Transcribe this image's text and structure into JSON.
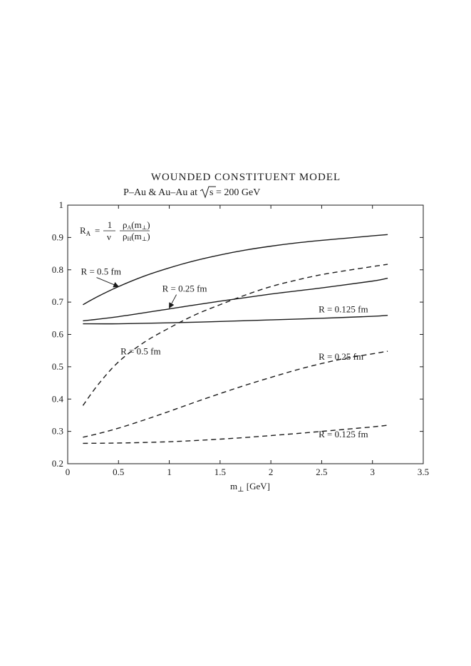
{
  "chart_data": {
    "type": "line",
    "title": "WOUNDED CONSTITUENT MODEL",
    "subtitle": {
      "prefix": "P–Au  &  Au–Au  at  ",
      "sqrt_label": "s",
      "suffix": " = 200 GeV"
    },
    "xlabel": {
      "main": "m",
      "sub": "⊥",
      "rest": " [GeV]"
    },
    "ylabel": "",
    "xlim": [
      0,
      3.5
    ],
    "ylim": [
      0.2,
      1
    ],
    "x_ticks": [
      {
        "value": 0,
        "label": "0"
      },
      {
        "value": 0.5,
        "label": "0.5"
      },
      {
        "value": 1,
        "label": "1"
      },
      {
        "value": 1.5,
        "label": "1.5"
      },
      {
        "value": 2,
        "label": "2"
      },
      {
        "value": 2.5,
        "label": "2.5"
      },
      {
        "value": 3,
        "label": "3"
      },
      {
        "value": 3.5,
        "label": "3.5"
      }
    ],
    "y_ticks": [
      {
        "value": 0.2,
        "label": "0.2"
      },
      {
        "value": 0.3,
        "label": "0.3"
      },
      {
        "value": 0.4,
        "label": "0.4"
      },
      {
        "value": 0.5,
        "label": "0.5"
      },
      {
        "value": 0.6,
        "label": "0.6"
      },
      {
        "value": 0.7,
        "label": "0.7"
      },
      {
        "value": 0.8,
        "label": "0.8"
      },
      {
        "value": 0.9,
        "label": "0.9"
      },
      {
        "value": 1,
        "label": "1"
      }
    ],
    "grid": false,
    "formula": {
      "lhs": "R",
      "lhs_sub": "A",
      "eq": "=",
      "frac1_num": "1",
      "frac1_den": "ν",
      "frac2_num": "ρ",
      "frac2_num_sub": "A",
      "frac2_num_arg": "(m",
      "frac2_num_arg_sub": "⊥",
      "frac2_num_close": ")",
      "frac2_den": "ρ",
      "frac2_den_sub": "H",
      "frac2_den_arg": "(m",
      "frac2_den_arg_sub": "⊥",
      "frac2_den_close": ")"
    },
    "series": [
      {
        "name": "R = 0.5 fm",
        "style": "solid",
        "x": [
          0.15,
          0.3,
          0.5,
          0.75,
          1.0,
          1.25,
          1.5,
          1.75,
          2.0,
          2.25,
          2.5,
          2.75,
          3.0,
          3.15
        ],
        "y": [
          0.692,
          0.718,
          0.748,
          0.78,
          0.806,
          0.828,
          0.846,
          0.861,
          0.873,
          0.883,
          0.891,
          0.898,
          0.905,
          0.909
        ]
      },
      {
        "name": "R = 0.25 fm",
        "style": "solid",
        "x": [
          0.15,
          0.5,
          1.0,
          1.5,
          2.0,
          2.5,
          3.0,
          3.15
        ],
        "y": [
          0.642,
          0.655,
          0.679,
          0.703,
          0.725,
          0.744,
          0.765,
          0.774
        ]
      },
      {
        "name": "R = 0.125 fm",
        "style": "solid",
        "x": [
          0.15,
          0.5,
          1.0,
          1.5,
          2.0,
          2.5,
          3.0,
          3.15
        ],
        "y": [
          0.633,
          0.633,
          0.636,
          0.64,
          0.645,
          0.65,
          0.656,
          0.659
        ]
      },
      {
        "name": "R = 0.5 fm",
        "style": "dashed",
        "x": [
          0.15,
          0.3,
          0.5,
          0.75,
          1.0,
          1.25,
          1.5,
          1.75,
          2.0,
          2.25,
          2.5,
          2.75,
          3.0,
          3.15
        ],
        "y": [
          0.38,
          0.445,
          0.515,
          0.575,
          0.62,
          0.66,
          0.692,
          0.722,
          0.748,
          0.768,
          0.785,
          0.798,
          0.81,
          0.817
        ]
      },
      {
        "name": "R = 0.25 fm",
        "style": "dashed",
        "x": [
          0.15,
          0.3,
          0.5,
          0.75,
          1.0,
          1.25,
          1.5,
          1.75,
          2.0,
          2.25,
          2.5,
          2.75,
          3.0,
          3.15
        ],
        "y": [
          0.282,
          0.293,
          0.31,
          0.335,
          0.362,
          0.39,
          0.417,
          0.443,
          0.467,
          0.49,
          0.51,
          0.527,
          0.54,
          0.548
        ]
      },
      {
        "name": "R = 0.125 fm",
        "style": "dashed",
        "x": [
          0.15,
          0.5,
          1.0,
          1.5,
          2.0,
          2.5,
          3.0,
          3.15
        ],
        "y": [
          0.263,
          0.264,
          0.268,
          0.276,
          0.287,
          0.3,
          0.314,
          0.319
        ]
      }
    ],
    "labels": [
      {
        "text": "R = 0.5 fm",
        "x": 0.13,
        "y": 0.785,
        "arrow_to": [
          0.5,
          0.748
        ]
      },
      {
        "text": "R = 0.25 fm",
        "x": 0.93,
        "y": 0.732,
        "arrow_to": [
          1.0,
          0.682
        ]
      },
      {
        "text": "R = 0.125 fm",
        "x": 2.47,
        "y": 0.668
      },
      {
        "text": "R = 0.5 fm",
        "x": 0.52,
        "y": 0.538
      },
      {
        "text": "R = 0.25 fm",
        "x": 2.47,
        "y": 0.522
      },
      {
        "text": "R = 0.125 fm",
        "x": 2.47,
        "y": 0.282
      }
    ]
  }
}
